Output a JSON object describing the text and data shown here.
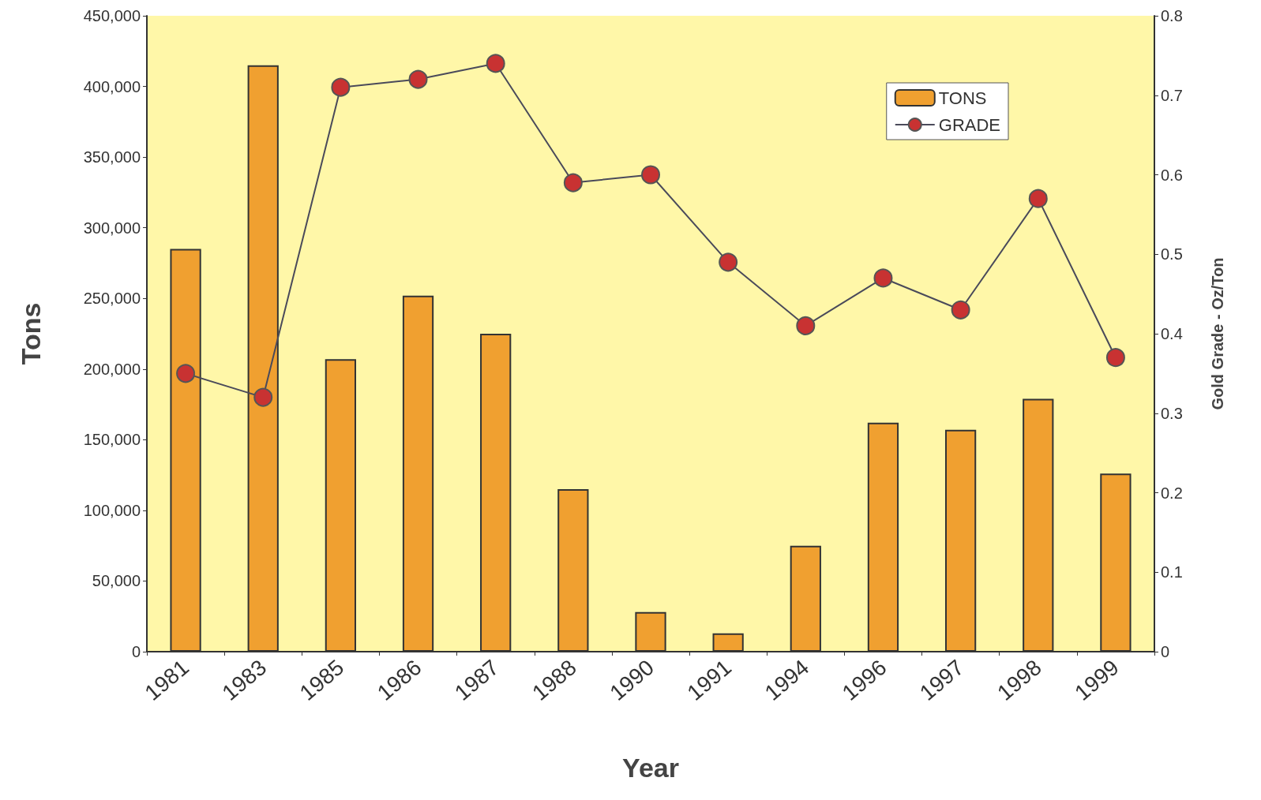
{
  "chart_data": {
    "type": "bar",
    "xlabel": "Year",
    "ylabel": "Tons",
    "y2label": "Gold Grade - Oz/Ton",
    "categories": [
      "1981",
      "1983",
      "1985",
      "1986",
      "1987",
      "1988",
      "1990",
      "1991",
      "1994",
      "1996",
      "1997",
      "1998",
      "1999"
    ],
    "series": [
      {
        "name": "TONS",
        "color": "#f0a030",
        "values": [
          285000,
          415000,
          207000,
          252000,
          225000,
          115000,
          28000,
          13000,
          75000,
          162000,
          157000,
          179000,
          126000
        ]
      },
      {
        "name": "GRADE",
        "type": "line",
        "axis": "y2",
        "color": "#c83232",
        "values": [
          0.35,
          0.32,
          0.71,
          0.72,
          0.74,
          0.59,
          0.6,
          0.49,
          0.41,
          0.47,
          0.43,
          0.57,
          0.37
        ]
      }
    ],
    "ylim": [
      0,
      450000
    ],
    "yticks": [
      {
        "value": 0,
        "label": "0"
      },
      {
        "value": 50000,
        "label": "50,000"
      },
      {
        "value": 100000,
        "label": "100,000"
      },
      {
        "value": 150000,
        "label": "150,000"
      },
      {
        "value": 200000,
        "label": "200,000"
      },
      {
        "value": 250000,
        "label": "250,000"
      },
      {
        "value": 300000,
        "label": "300,000"
      },
      {
        "value": 350000,
        "label": "350,000"
      },
      {
        "value": 400000,
        "label": "400,000"
      },
      {
        "value": 450000,
        "label": "450,000"
      }
    ],
    "y2lim": [
      0,
      0.8
    ],
    "y2ticks": [
      0,
      0.1,
      0.2,
      0.3,
      0.4,
      0.5,
      0.6,
      0.7,
      0.8
    ],
    "marker": "circle",
    "line_style": "solid",
    "grid": false,
    "legend": "top right"
  }
}
